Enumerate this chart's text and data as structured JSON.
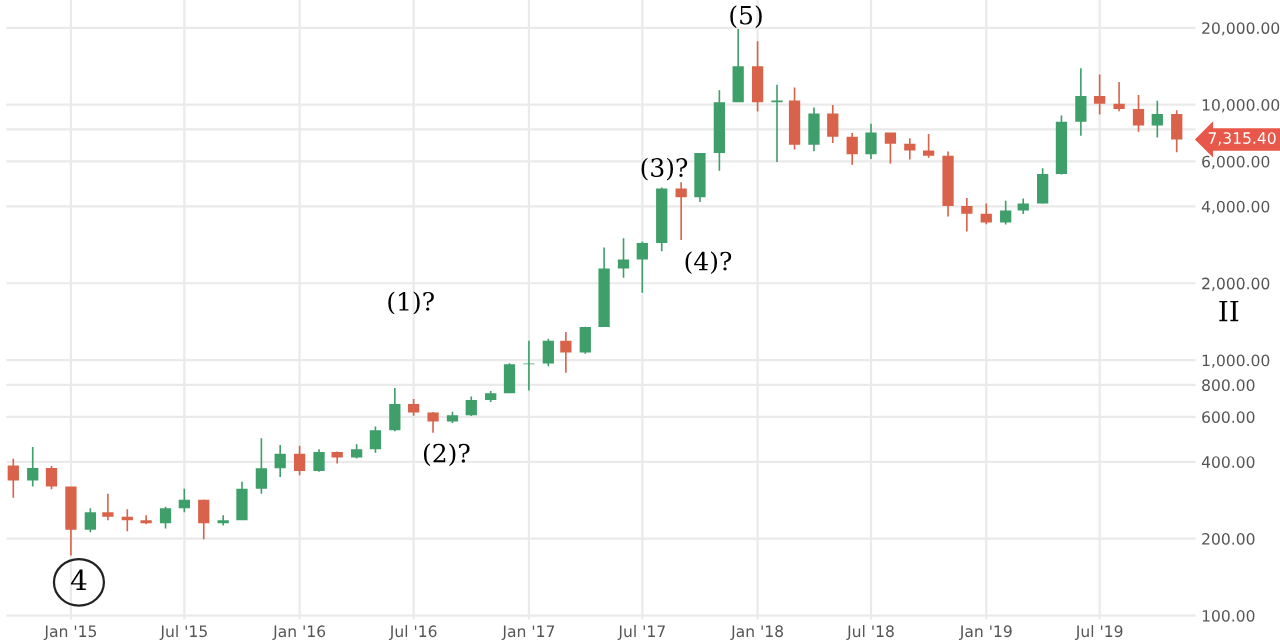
{
  "chart_data": {
    "type": "candlestick",
    "log": "y",
    "grid": true,
    "x": [
      "2014-10",
      "2014-11",
      "2014-12",
      "2015-01",
      "2015-02",
      "2015-03",
      "2015-04",
      "2015-05",
      "2015-06",
      "2015-07",
      "2015-08",
      "2015-09",
      "2015-10",
      "2015-11",
      "2015-12",
      "2016-01",
      "2016-02",
      "2016-03",
      "2016-04",
      "2016-05",
      "2016-06",
      "2016-07",
      "2016-08",
      "2016-09",
      "2016-10",
      "2016-11",
      "2016-12",
      "2017-01",
      "2017-02",
      "2017-03",
      "2017-04",
      "2017-05",
      "2017-06",
      "2017-07",
      "2017-08",
      "2017-09",
      "2017-10",
      "2017-11",
      "2017-12",
      "2018-01",
      "2018-02",
      "2018-03",
      "2018-04",
      "2018-05",
      "2018-06",
      "2018-07",
      "2018-08",
      "2018-09",
      "2018-10",
      "2018-11",
      "2018-12",
      "2019-01",
      "2019-02",
      "2019-03",
      "2019-04",
      "2019-05",
      "2019-06",
      "2019-07",
      "2019-08",
      "2019-09",
      "2019-10",
      "2019-11"
    ],
    "ohlc": [
      [
        387,
        411,
        289,
        338
      ],
      [
        338,
        457,
        320,
        378
      ],
      [
        378,
        385,
        312,
        320
      ],
      [
        320,
        320,
        172,
        217
      ],
      [
        217,
        263,
        212,
        254
      ],
      [
        254,
        300,
        236,
        244
      ],
      [
        244,
        261,
        214,
        236
      ],
      [
        236,
        247,
        228,
        230
      ],
      [
        230,
        267,
        219,
        263
      ],
      [
        263,
        314,
        254,
        284
      ],
      [
        284,
        285,
        199,
        230
      ],
      [
        230,
        247,
        225,
        236
      ],
      [
        236,
        334,
        236,
        314
      ],
      [
        314,
        495,
        300,
        377
      ],
      [
        377,
        465,
        349,
        430
      ],
      [
        430,
        462,
        354,
        368
      ],
      [
        368,
        448,
        366,
        437
      ],
      [
        437,
        439,
        394,
        416
      ],
      [
        416,
        468,
        412,
        448
      ],
      [
        448,
        550,
        434,
        531
      ],
      [
        531,
        778,
        527,
        673
      ],
      [
        673,
        704,
        606,
        624
      ],
      [
        624,
        627,
        520,
        575
      ],
      [
        575,
        628,
        568,
        609
      ],
      [
        609,
        721,
        605,
        698
      ],
      [
        698,
        758,
        685,
        742
      ],
      [
        742,
        973,
        742,
        963
      ],
      [
        963,
        1191,
        760,
        970
      ],
      [
        970,
        1213,
        946,
        1190
      ],
      [
        1190,
        1290,
        893,
        1071
      ],
      [
        1071,
        1350,
        1060,
        1347
      ],
      [
        1347,
        2763,
        1347,
        2286
      ],
      [
        2286,
        2999,
        2100,
        2480
      ],
      [
        2480,
        2917,
        1837,
        2875
      ],
      [
        2875,
        4744,
        2671,
        4703
      ],
      [
        4703,
        4975,
        2951,
        4338
      ],
      [
        4338,
        6470,
        4164,
        6468
      ],
      [
        6468,
        11400,
        5519,
        10233
      ],
      [
        10233,
        19783,
        10233,
        14156
      ],
      [
        14156,
        17712,
        9402,
        10221
      ],
      [
        10221,
        11958,
        5968,
        10397
      ],
      [
        10397,
        11680,
        6683,
        6973
      ],
      [
        6973,
        9746,
        6574,
        9240
      ],
      [
        9240,
        9964,
        7089,
        7494
      ],
      [
        7494,
        7754,
        5826,
        6404
      ],
      [
        6404,
        8424,
        6133,
        7780
      ],
      [
        7780,
        7780,
        5880,
        7037
      ],
      [
        7037,
        7388,
        6100,
        6625
      ],
      [
        6625,
        7680,
        6205,
        6318
      ],
      [
        6318,
        6553,
        3654,
        4017
      ],
      [
        4017,
        4309,
        3191,
        3743
      ],
      [
        3743,
        4109,
        3401,
        3457
      ],
      [
        3457,
        4210,
        3400,
        3854
      ],
      [
        3854,
        4296,
        3734,
        4105
      ],
      [
        4105,
        5642,
        4097,
        5350
      ],
      [
        5350,
        9074,
        5332,
        8574
      ],
      [
        8574,
        13880,
        7564,
        10817
      ],
      [
        10817,
        13129,
        9163,
        10085
      ],
      [
        10085,
        12273,
        9421,
        9630
      ],
      [
        9630,
        10905,
        7830,
        8293
      ],
      [
        8293,
        10370,
        7446,
        9199
      ],
      [
        9199,
        9505,
        6515,
        7315
      ]
    ],
    "xlim": [
      "2014-09-20",
      "2019-12-01"
    ],
    "xticks": [
      {
        "value": "2015-01-01",
        "label": "Jan '15"
      },
      {
        "value": "2015-07-01",
        "label": "Jul '15"
      },
      {
        "value": "2016-01-01",
        "label": "Jan '16"
      },
      {
        "value": "2016-07-01",
        "label": "Jul '16"
      },
      {
        "value": "2017-01-01",
        "label": "Jan '17"
      },
      {
        "value": "2017-07-01",
        "label": "Jul '17"
      },
      {
        "value": "2018-01-01",
        "label": "Jan '18"
      },
      {
        "value": "2018-07-01",
        "label": "Jul '18"
      },
      {
        "value": "2019-01-01",
        "label": "Jan '19"
      },
      {
        "value": "2019-07-01",
        "label": "Jul '19"
      }
    ],
    "ylim": [
      96.5,
      25700
    ],
    "yticks": [
      {
        "value": 100,
        "label": "100.00"
      },
      {
        "value": 200,
        "label": "200.00"
      },
      {
        "value": 400,
        "label": "400.00"
      },
      {
        "value": 600,
        "label": "600.00"
      },
      {
        "value": 800,
        "label": "800.00"
      },
      {
        "value": 1000,
        "label": "1,000.00"
      },
      {
        "value": 2000,
        "label": "2,000.00"
      },
      {
        "value": 4000,
        "label": "4,000.00"
      },
      {
        "value": 6000,
        "label": "6,000.00"
      },
      {
        "value": 8000,
        "label": null
      },
      {
        "value": 10000,
        "label": "10,000.00"
      },
      {
        "value": 20000,
        "label": "20,000.00"
      }
    ],
    "annotations": [
      "4",
      "(1)?",
      "(2)?",
      "(3)?",
      "(4)?",
      "(5)",
      {
        "text": "7,315.40",
        "x": "2019-11",
        "y": 7315
      },
      "II"
    ]
  }
}
